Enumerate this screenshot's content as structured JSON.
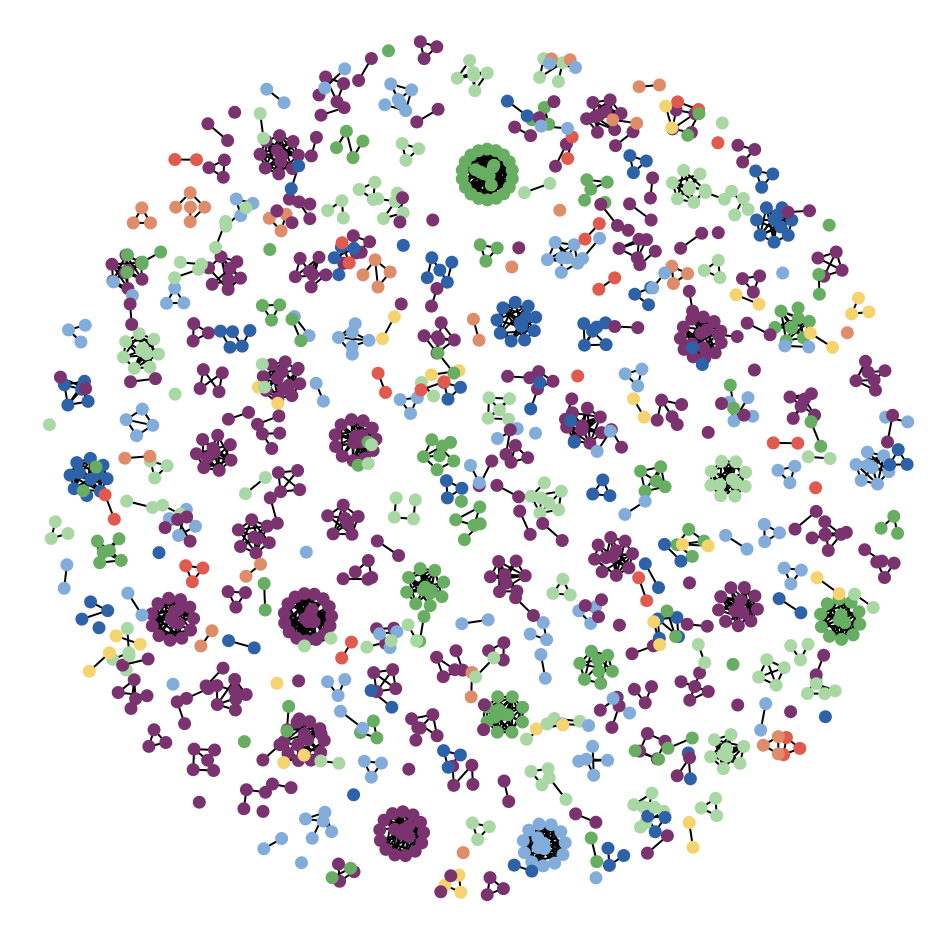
{
  "graph": {
    "layout_style": "clustered-disk",
    "edge_color": "#000000",
    "palette": {
      "plum": "#7b3370",
      "dark-blue": "#2d62a8",
      "light-blue": "#82acd9",
      "green": "#67ae62",
      "light-green": "#a9d8a4",
      "red": "#e05a4e",
      "orange": "#de8c6a",
      "yellow": "#f5d36e"
    },
    "components": [
      {
        "type": "cluster",
        "size": 22,
        "color": "plum"
      },
      {
        "type": "cluster",
        "size": 26,
        "color": "green"
      },
      {
        "type": "cluster",
        "size": 18,
        "color": "plum"
      },
      {
        "type": "cluster",
        "size": 16,
        "color": "plum"
      },
      {
        "type": "cluster",
        "size": 16,
        "color": "light-blue"
      },
      {
        "type": "cluster",
        "size": 15,
        "color": "plum"
      },
      {
        "type": "cluster",
        "size": 15,
        "color": "plum"
      },
      {
        "type": "cluster",
        "size": 14,
        "color": "green"
      },
      {
        "type": "cluster",
        "size": 14,
        "color": "plum"
      },
      {
        "type": "cluster",
        "size": 13,
        "color": "dark-blue"
      },
      {
        "type": "cluster",
        "size": 13,
        "color": "plum"
      },
      {
        "type": "cluster",
        "size": 12,
        "color": "green"
      },
      {
        "type": "cluster",
        "size": 12,
        "color": "plum"
      },
      {
        "type": "cluster",
        "size": 12,
        "color": "plum"
      },
      {
        "type": "cluster",
        "size": 12,
        "color": "green"
      },
      {
        "type": "cluster",
        "size": 11,
        "color": "light-green"
      },
      {
        "type": "cluster",
        "size": 11,
        "color": "plum"
      },
      {
        "type": "cluster",
        "size": 11,
        "color": "dark-blue"
      },
      {
        "type": "cluster",
        "size": 10,
        "color": "plum"
      },
      {
        "type": "cluster",
        "size": 10,
        "color": "plum"
      },
      {
        "type": "cluster",
        "size": 10,
        "color": "dark-blue"
      },
      {
        "type": "cluster",
        "size": 10,
        "color": "light-green"
      },
      {
        "type": "cluster",
        "size": 9,
        "color": "plum"
      },
      {
        "type": "cluster",
        "size": 9,
        "color": "green"
      },
      {
        "type": "cluster",
        "size": 9,
        "color": "plum"
      },
      {
        "type": "cluster",
        "size": 9,
        "color": "light-green"
      },
      {
        "type": "cluster",
        "size": 8,
        "color": "plum"
      },
      {
        "type": "cluster",
        "size": 8,
        "color": "light-blue"
      },
      {
        "type": "cluster",
        "size": 8,
        "color": "plum"
      },
      {
        "type": "cluster",
        "size": 8,
        "color": "green"
      },
      {
        "type": "cluster",
        "size": 8,
        "color": "plum"
      },
      {
        "type": "cluster",
        "size": 8,
        "color": "light-green"
      },
      {
        "type": "cluster",
        "size": 7,
        "color": "plum"
      },
      {
        "type": "cluster",
        "size": 7,
        "color": "light-blue"
      },
      {
        "type": "cluster",
        "size": 7,
        "color": "plum"
      },
      {
        "type": "cluster",
        "size": 7,
        "color": "green"
      },
      {
        "type": "cluster",
        "size": 7,
        "color": "light-green"
      },
      {
        "type": "cluster",
        "size": 7,
        "color": "plum"
      },
      {
        "type": "cluster",
        "size": 6,
        "color": "light-blue"
      },
      {
        "type": "cluster",
        "size": 6,
        "color": "plum"
      },
      {
        "type": "cluster",
        "size": 6,
        "color": "dark-blue"
      },
      {
        "type": "cluster",
        "size": 6,
        "color": "light-green"
      },
      {
        "type": "cluster",
        "size": 6,
        "color": "plum"
      },
      {
        "type": "cluster",
        "size": 6,
        "color": "green"
      },
      {
        "type": "cluster",
        "size": 6,
        "color": "light-blue"
      },
      {
        "type": "cluster",
        "size": 6,
        "color": "plum"
      },
      {
        "type": "cluster",
        "size": 6,
        "color": "plum"
      },
      {
        "type": "cluster",
        "size": 6,
        "color": "light-green"
      },
      {
        "type": "cluster",
        "size": 5,
        "color": "plum"
      },
      {
        "type": "cluster",
        "size": 5,
        "color": "light-blue"
      },
      {
        "type": "cluster",
        "size": 5,
        "color": "green"
      },
      {
        "type": "cluster",
        "size": 5,
        "color": "plum"
      },
      {
        "type": "cluster",
        "size": 5,
        "color": "dark-blue"
      },
      {
        "type": "cluster",
        "size": 5,
        "color": "light-green"
      },
      {
        "type": "cluster",
        "size": 5,
        "color": "plum"
      },
      {
        "type": "cluster",
        "size": 5,
        "color": "orange"
      },
      {
        "type": "cluster",
        "size": 5,
        "color": "plum"
      },
      {
        "type": "cluster",
        "size": 5,
        "color": "light-blue"
      },
      {
        "type": "cluster",
        "size": 5,
        "color": "plum"
      },
      {
        "type": "cluster",
        "size": 5,
        "color": "green"
      },
      {
        "type": "cluster",
        "size": 5,
        "color": "light-green"
      },
      {
        "type": "cluster",
        "size": 5,
        "color": "plum"
      },
      {
        "type": "cluster",
        "size": 5,
        "color": "dark-blue"
      },
      {
        "type": "cluster",
        "size": 5,
        "color": "plum"
      },
      {
        "type": "cluster",
        "size": 4,
        "color": "plum"
      },
      {
        "type": "cluster",
        "size": 4,
        "color": "light-blue"
      },
      {
        "type": "cluster",
        "size": 4,
        "color": "green"
      },
      {
        "type": "cluster",
        "size": 4,
        "color": "plum"
      },
      {
        "type": "cluster",
        "size": 4,
        "color": "light-green"
      },
      {
        "type": "cluster",
        "size": 4,
        "color": "dark-blue"
      },
      {
        "type": "cluster",
        "size": 4,
        "color": "plum"
      },
      {
        "type": "cluster",
        "size": 4,
        "color": "light-blue"
      },
      {
        "type": "cluster",
        "size": 4,
        "color": "plum"
      },
      {
        "type": "cluster",
        "size": 4,
        "color": "green"
      },
      {
        "type": "cluster",
        "size": 4,
        "color": "plum"
      },
      {
        "type": "cluster",
        "size": 4,
        "color": "light-green"
      },
      {
        "type": "cluster",
        "size": 4,
        "color": "plum"
      },
      {
        "type": "cluster",
        "size": 4,
        "color": "dark-blue"
      },
      {
        "type": "cluster",
        "size": 4,
        "color": "light-blue"
      },
      {
        "type": "cluster",
        "size": 4,
        "color": "plum"
      },
      {
        "type": "cluster",
        "size": 4,
        "color": "light-green"
      },
      {
        "type": "cluster",
        "size": 4,
        "color": "plum"
      },
      {
        "type": "cluster",
        "size": 4,
        "color": "green"
      },
      {
        "type": "cluster",
        "size": 4,
        "color": "plum"
      },
      {
        "type": "cluster",
        "size": 4,
        "color": "orange"
      }
    ],
    "small_components": {
      "triangles": 70,
      "pairs": 190,
      "singles": 40,
      "color_mix": [
        "plum",
        "plum",
        "plum",
        "plum",
        "plum",
        "plum",
        "plum",
        "plum",
        "dark-blue",
        "dark-blue",
        "light-blue",
        "light-blue",
        "light-blue",
        "green",
        "green",
        "light-green",
        "light-green",
        "light-green",
        "red",
        "orange",
        "yellow"
      ]
    }
  }
}
